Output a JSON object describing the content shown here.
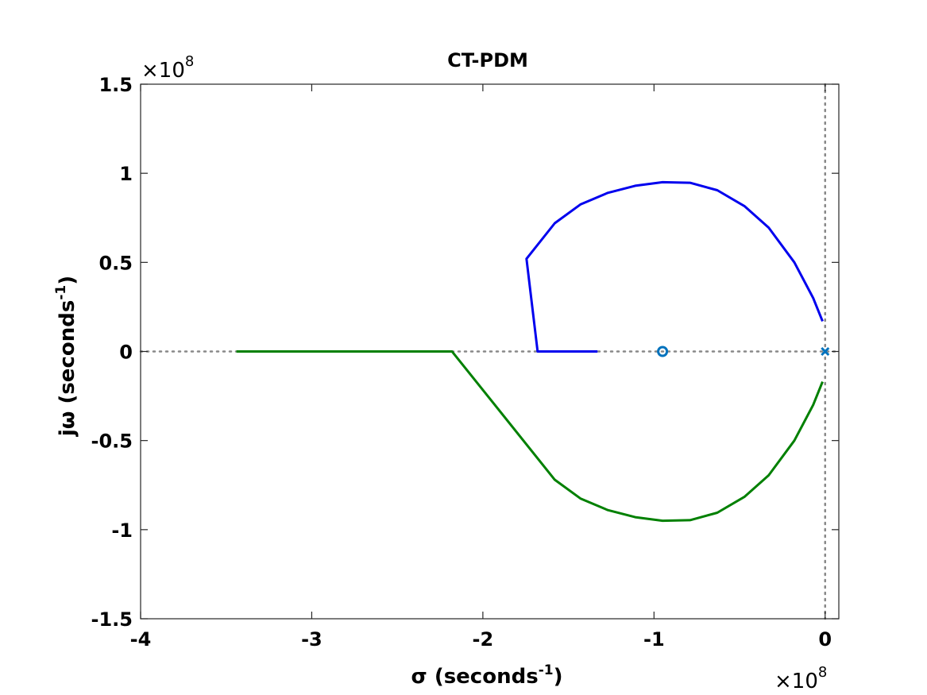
{
  "chart_data": {
    "type": "line",
    "title": "CT-PDM",
    "xlabel": {
      "main": "σ (seconds",
      "sup": "-1",
      "close": ")"
    },
    "ylabel": {
      "main": "jω (seconds",
      "sup": "-1",
      "close": ")"
    },
    "x_multiplier": {
      "times": "×10",
      "exp": "8"
    },
    "y_multiplier": {
      "times": "×10",
      "exp": "8"
    },
    "units_scale": 100000000,
    "xlim": [
      -400000000,
      8000000
    ],
    "ylim": [
      -150000000,
      150000000
    ],
    "x_ticks": [
      -400000000,
      -300000000,
      -200000000,
      -100000000,
      0
    ],
    "x_tick_labels": [
      "-4",
      "-3",
      "-2",
      "-1",
      "0"
    ],
    "y_ticks": [
      -150000000,
      -100000000,
      -50000000,
      0,
      50000000,
      100000000,
      150000000
    ],
    "y_tick_labels": [
      "-1.5",
      "-1",
      "-0.5",
      "0",
      "0.5",
      "1",
      "1.5"
    ],
    "grid": false,
    "colors": {
      "blue_branch": "#0000ee",
      "green_branch": "#008000",
      "markers": "#0072bd",
      "reference_lines": "#888888"
    },
    "series": [
      {
        "color": "#0000ee",
        "x": [
          -133000000,
          -168000000,
          -174500000,
          -158000000,
          -143000000,
          -127000000,
          -111000000,
          -95000000,
          -79000000,
          -63000000,
          -47000000,
          -33000000,
          -18000000,
          -7000000,
          -1500000
        ],
        "y": [
          0,
          0,
          52000000,
          72000000,
          82500000,
          89000000,
          93000000,
          95000000,
          94700000,
          90500000,
          81500000,
          69500000,
          50000000,
          30000000,
          17000000
        ]
      },
      {
        "color": "#008000",
        "x": [
          -344000000,
          -218000000,
          -158000000,
          -143000000,
          -127000000,
          -111000000,
          -95000000,
          -79000000,
          -63000000,
          -47000000,
          -33000000,
          -18000000,
          -7000000,
          -1500000
        ],
        "y": [
          0,
          0,
          -72000000,
          -82500000,
          -89000000,
          -93000000,
          -95000000,
          -94700000,
          -90500000,
          -81500000,
          -69500000,
          -50000000,
          -30000000,
          -17000000
        ]
      }
    ],
    "zeros": [
      {
        "x": -95000000,
        "y": 0
      }
    ],
    "poles": [
      {
        "x": 0,
        "y": 0
      }
    ]
  }
}
